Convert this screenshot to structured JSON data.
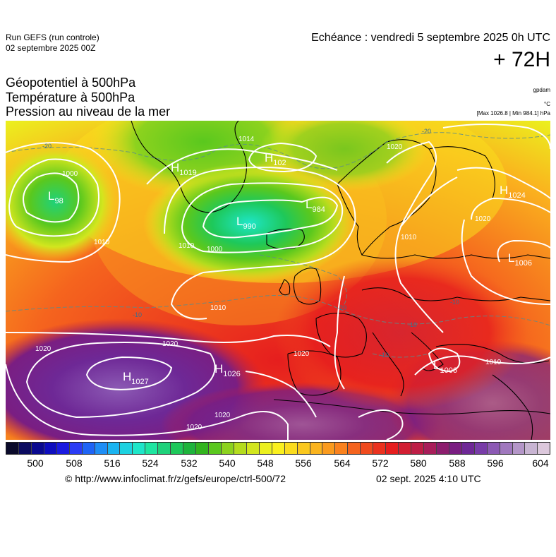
{
  "header": {
    "run_title": "Run GEFS (run controle)",
    "run_date": "02 septembre 2025 00Z",
    "echeance": "Echéance : vendredi 5 septembre 2025 0h UTC",
    "hours": "+ 72H"
  },
  "params": {
    "line1": "Géopotentiel à 500hPa",
    "line2": "Température à 500hPa",
    "line3": "Pression au niveau de la mer"
  },
  "units": {
    "gpdam": "gpdam",
    "celsius": "°C",
    "maxmin": "[Max 1026.8 | Min 984.1] hPa"
  },
  "map": {
    "pressure_centers": [
      {
        "type": "L",
        "value": "98"
      },
      {
        "type": "H",
        "value": "1019"
      },
      {
        "type": "L",
        "value": "990"
      },
      {
        "type": "H",
        "value": "102"
      },
      {
        "type": "L",
        "value": "984"
      },
      {
        "type": "H",
        "value": "1024"
      },
      {
        "type": "L",
        "value": "1006"
      },
      {
        "type": "H",
        "value": "1027"
      },
      {
        "type": "H",
        "value": "1026"
      },
      {
        "type": "L",
        "value": "1006"
      }
    ],
    "isobar_labels": [
      "1014",
      "1000",
      "1010",
      "1000",
      "1010",
      "1010",
      "1020",
      "1020",
      "1020",
      "1020",
      "1020",
      "1020",
      "1010",
      "1010",
      "1020"
    ],
    "isotherm_labels": [
      "-20",
      "-20",
      "-10",
      "-20",
      "-10",
      "-10",
      "-10"
    ]
  },
  "legend": {
    "colors": [
      "#0a0a2a",
      "#0b0b60",
      "#0a0a90",
      "#0e0ebe",
      "#1a1ae0",
      "#2a3cf5",
      "#1e64f5",
      "#1e8ef5",
      "#1ab4f0",
      "#1cd2e0",
      "#1ee6c8",
      "#1ee6a0",
      "#1ed27a",
      "#1ec85a",
      "#1eb43c",
      "#32b41e",
      "#5ac81e",
      "#8cd21e",
      "#b4dc1e",
      "#d2e61e",
      "#ebf01e",
      "#faf01e",
      "#fadc1e",
      "#fac81e",
      "#fab41e",
      "#fa9b1e",
      "#fa821e",
      "#f5641e",
      "#f04b1e",
      "#eb321e",
      "#e61e1e",
      "#d21e32",
      "#be1e46",
      "#a81e5a",
      "#8c1e6e",
      "#7a1e82",
      "#6e2896",
      "#783ca8",
      "#8c5ab4",
      "#a078be",
      "#b496c8",
      "#c8b4d2",
      "#dcc8dc"
    ],
    "labels": [
      "500",
      "508",
      "516",
      "524",
      "532",
      "540",
      "548",
      "556",
      "564",
      "572",
      "580",
      "588",
      "596",
      "604"
    ]
  },
  "footer": {
    "source": "© http://www.infoclimat.fr/z/gefs/europe/ctrl-500/72",
    "issued": "02 sept. 2025  4:10 UTC"
  }
}
